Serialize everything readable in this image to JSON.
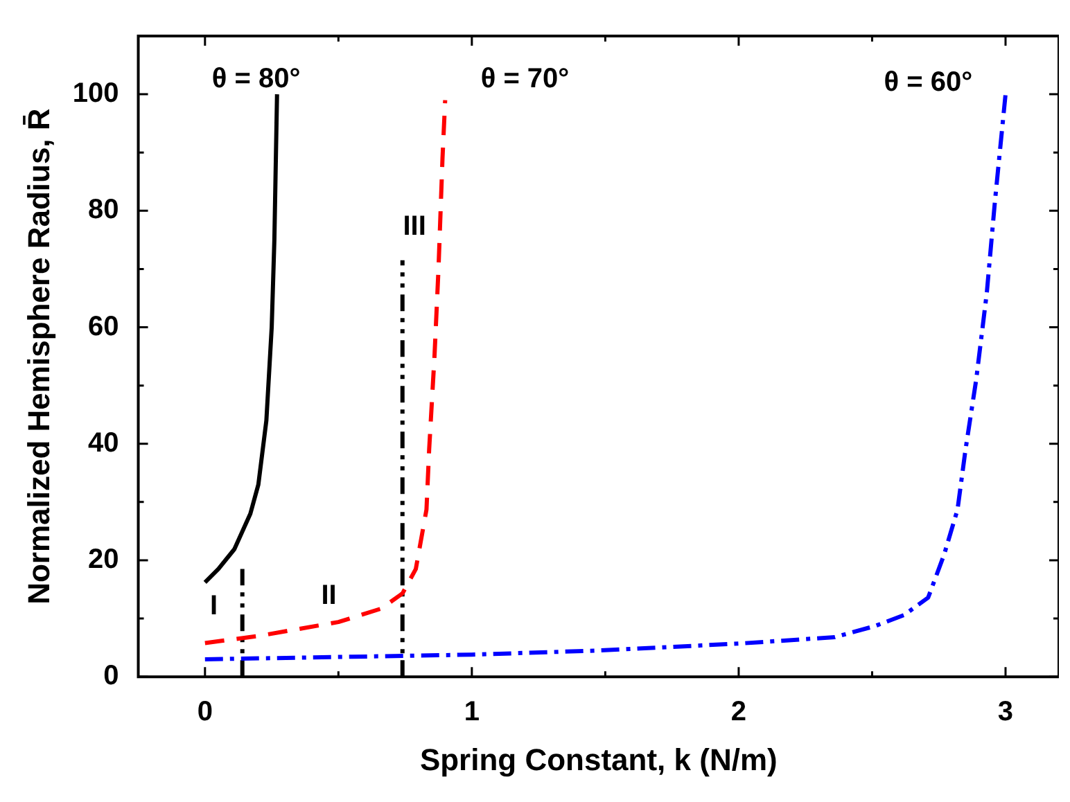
{
  "chart_data": {
    "type": "line",
    "xlabel": "Spring Constant, k (N/m)",
    "ylabel": "Normalized Hemisphere Radius, R̄",
    "xlim": [
      -0.25,
      3.2
    ],
    "ylim": [
      0,
      110
    ],
    "xticks": [
      0,
      {
        "value": 0.5,
        "label": null
      },
      1,
      {
        "value": 1.5,
        "label": null
      },
      2,
      {
        "value": 2.5,
        "label": null
      },
      3
    ],
    "yticks": [
      0,
      {
        "value": 10,
        "label": null
      },
      20,
      {
        "value": 30,
        "label": null
      },
      40,
      {
        "value": 50,
        "label": null
      },
      60,
      {
        "value": 70,
        "label": null
      },
      80,
      {
        "value": 90,
        "label": null
      },
      100
    ],
    "series": [
      {
        "type": "line",
        "color": "#000000",
        "line_style": "solid",
        "x": [
          0,
          0.05,
          0.11,
          0.17,
          0.2,
          0.23,
          0.25,
          0.26,
          0.27
        ],
        "values": [
          16.2,
          18.5,
          21.9,
          28,
          33,
          44,
          60,
          75,
          100
        ]
      },
      {
        "type": "line",
        "color": "#ff0000",
        "line_style": "dashed",
        "x": [
          0,
          0.2,
          0.5,
          0.66,
          0.74,
          0.79,
          0.83,
          0.84,
          0.86,
          0.875,
          0.89,
          0.9
        ],
        "values": [
          5.8,
          7,
          9.4,
          11.7,
          14.3,
          18.5,
          28.7,
          39,
          55,
          70,
          89,
          99
        ]
      },
      {
        "type": "line",
        "color": "#0000ff",
        "line_style": "dashdot",
        "x": [
          0,
          1,
          1.47,
          2,
          2.36,
          2.51,
          2.62,
          2.71,
          2.77,
          2.82,
          2.85,
          2.89,
          2.93,
          2.96,
          3
        ],
        "values": [
          3,
          3.8,
          4.5,
          5.7,
          6.8,
          8.7,
          10.6,
          13.6,
          21,
          28.7,
          39,
          51,
          66,
          81.5,
          100
        ]
      },
      {
        "type": "line",
        "color": "#000000",
        "line_style": "dashdotdot",
        "x": [
          0.14,
          0.14
        ],
        "values": [
          0,
          18.5
        ]
      },
      {
        "type": "line",
        "color": "#000000",
        "line_style": "dashdotdot",
        "x": [
          0.74,
          0.74
        ],
        "values": [
          0,
          71.5
        ]
      }
    ],
    "annotations": [
      "θ = 80°",
      "θ = 70°",
      "θ = 60°",
      "I",
      "II",
      "III"
    ]
  }
}
